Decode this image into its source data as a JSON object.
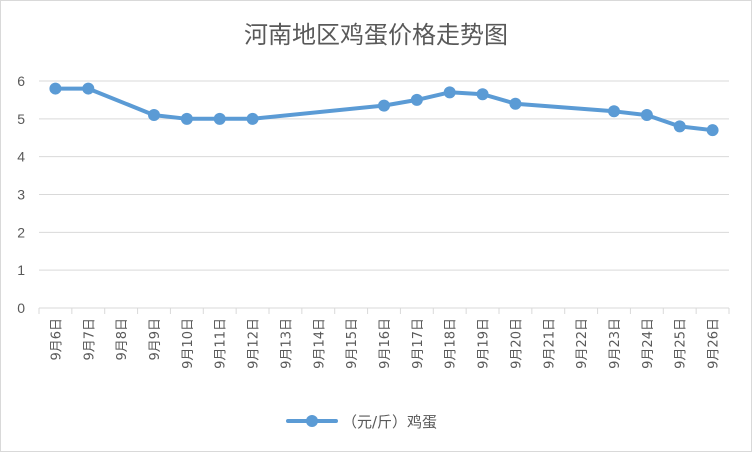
{
  "chart_data": {
    "type": "line",
    "title": "河南地区鸡蛋价格走势图",
    "xlabel": "",
    "ylabel": "",
    "ylim": [
      0,
      6
    ],
    "yticks": [
      0,
      1,
      2,
      3,
      4,
      5,
      6
    ],
    "grid": true,
    "legend_position": "bottom",
    "categories": [
      "9月6日",
      "9月7日",
      "9月8日",
      "9月9日",
      "9月10日",
      "9月11日",
      "9月12日",
      "9月13日",
      "9月14日",
      "9月15日",
      "9月16日",
      "9月17日",
      "9月18日",
      "9月19日",
      "9月20日",
      "9月21日",
      "9月22日",
      "9月23日",
      "9月24日",
      "9月25日",
      "9月26日"
    ],
    "series": [
      {
        "name": "（元/斤）鸡蛋",
        "color": "#5b9bd5",
        "values": [
          5.8,
          5.8,
          null,
          5.1,
          5.0,
          5.0,
          5.0,
          null,
          null,
          null,
          5.35,
          5.5,
          5.7,
          5.65,
          5.4,
          null,
          null,
          5.2,
          5.1,
          4.8,
          4.7
        ]
      }
    ]
  }
}
